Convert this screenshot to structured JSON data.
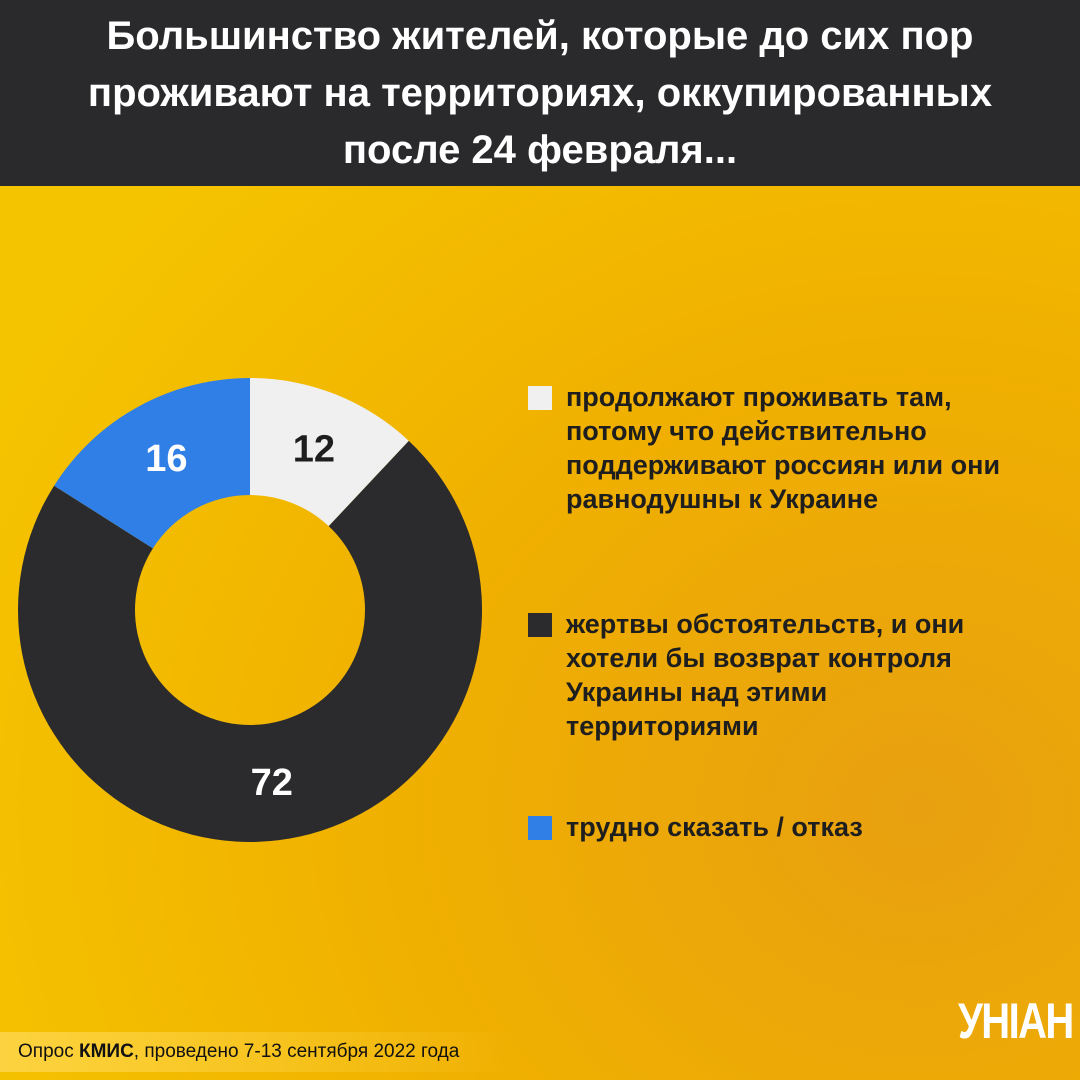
{
  "header": {
    "lines": [
      "Большинство жителей, которые до сих пор",
      "проживают на территориях, оккупированных",
      "после 24 февраля..."
    ]
  },
  "chart_data": {
    "type": "pie",
    "donut": true,
    "title": "Большинство жителей, которые до сих пор проживают на территориях, оккупированных после 24 февраля...",
    "slices": [
      {
        "label": "продолжают проживать там, потому что действительно поддерживают россиян или они равнодушны к Украине",
        "value": 12,
        "display": "12",
        "color": "#f0f0f0",
        "text_color": "#1e1e1e"
      },
      {
        "label": "жертвы обстоятельств, и они хотели бы возврат контроля Украины над этими территориями",
        "value": 72,
        "display": "72",
        "color": "#2b2b2e",
        "text_color": "#ffffff"
      },
      {
        "label": "трудно сказать / отказ",
        "value": 16,
        "display": "16",
        "color": "#2f7fe6",
        "text_color": "#ffffff"
      }
    ],
    "legend_placement": "right"
  },
  "footer": {
    "prefix": "Опрос ",
    "org": "КМИС",
    "suffix": ", проведено 7-13 сентября 2022 года"
  },
  "logo": "УНІАН"
}
